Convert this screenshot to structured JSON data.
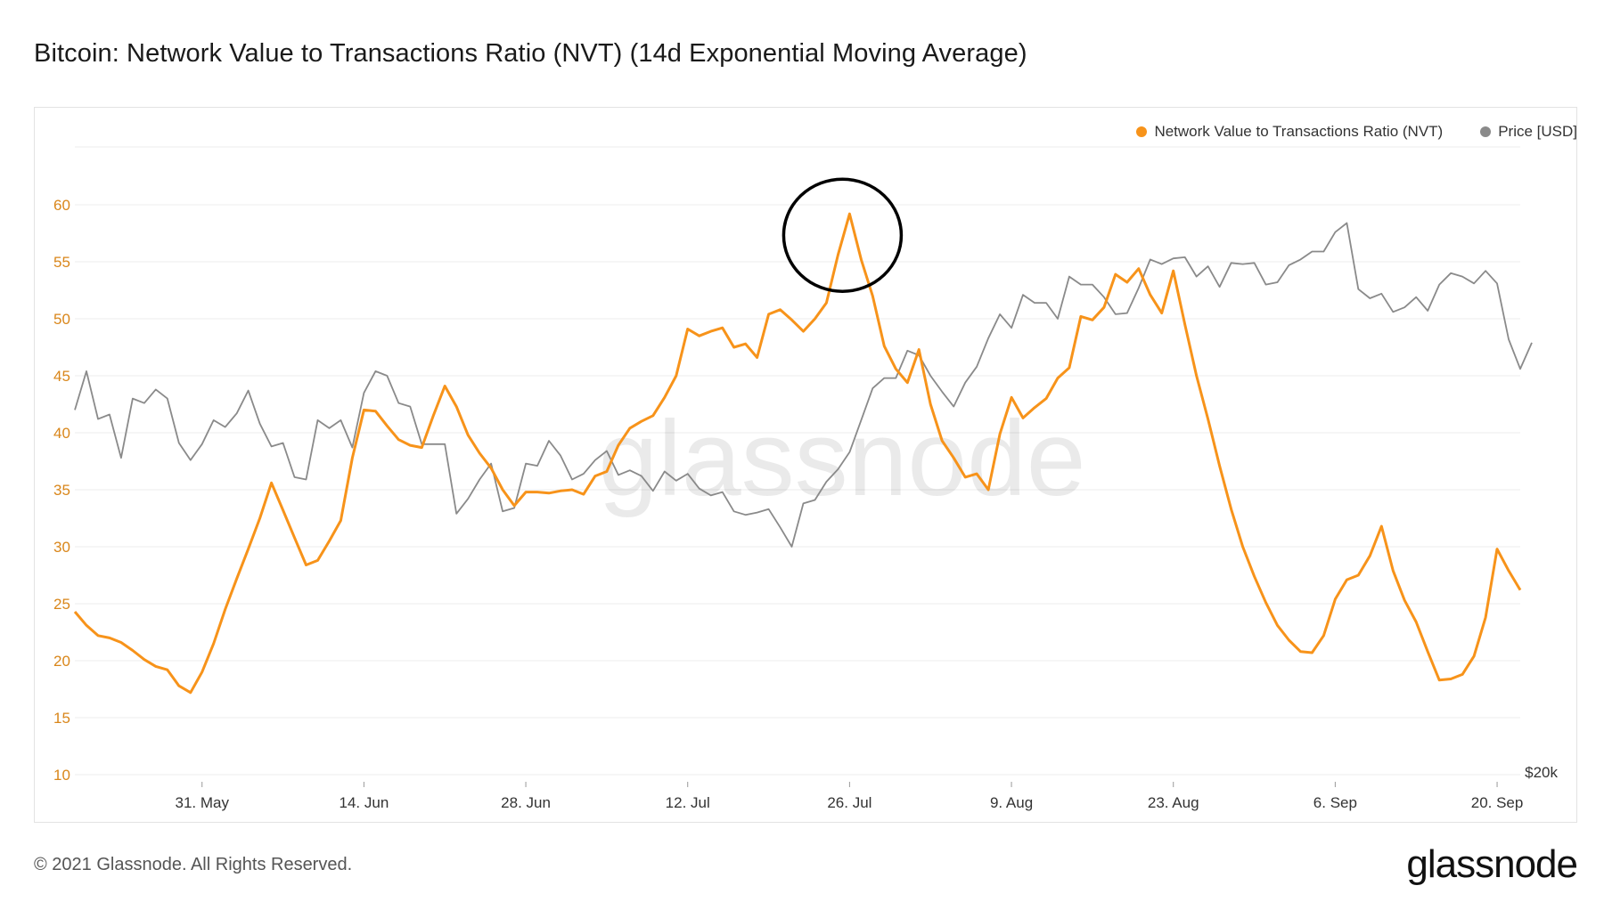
{
  "title": "Bitcoin: Network Value to Transactions Ratio (NVT) (14d Exponential Moving Average)",
  "footer": "© 2021 Glassnode. All Rights Reserved.",
  "brand": "glassnode",
  "watermark": "glassnode",
  "colors": {
    "nvt": "#f7931a",
    "price": "#8a8a8a",
    "grid": "#ececec",
    "left_axis": "#d9861a",
    "circle": "#000000"
  },
  "chart_data": {
    "type": "line",
    "title": "Bitcoin: Network Value to Transactions Ratio (NVT) (14d Exponential Moving Average)",
    "legend_position": "top-right",
    "grid": true,
    "x_range": [
      "2021-05-20",
      "2021-09-22"
    ],
    "x_ticks": [
      {
        "date": "2021-05-31",
        "label": "31. May"
      },
      {
        "date": "2021-06-14",
        "label": "14. Jun"
      },
      {
        "date": "2021-06-28",
        "label": "28. Jun"
      },
      {
        "date": "2021-07-12",
        "label": "12. Jul"
      },
      {
        "date": "2021-07-26",
        "label": "26. Jul"
      },
      {
        "date": "2021-08-09",
        "label": "9. Aug"
      },
      {
        "date": "2021-08-23",
        "label": "23. Aug"
      },
      {
        "date": "2021-09-06",
        "label": "6. Sep"
      },
      {
        "date": "2021-09-20",
        "label": "20. Sep"
      }
    ],
    "y_left": {
      "ylim": [
        10,
        60
      ],
      "ticks": [
        10,
        15,
        20,
        25,
        30,
        35,
        40,
        45,
        50,
        55,
        60
      ]
    },
    "y_right": {
      "tick_label": "$20k"
    },
    "annotation": {
      "shape": "circle",
      "date": "2021-07-25",
      "value": 58.5
    },
    "series": [
      {
        "name": "Network Value to Transactions Ratio (NVT)",
        "axis": "left",
        "points": [
          [
            "2021-05-20",
            24.3
          ],
          [
            "2021-05-21",
            23.1
          ],
          [
            "2021-05-22",
            22.2
          ],
          [
            "2021-05-23",
            22.0
          ],
          [
            "2021-05-24",
            21.6
          ],
          [
            "2021-05-25",
            20.9
          ],
          [
            "2021-05-26",
            20.1
          ],
          [
            "2021-05-27",
            19.5
          ],
          [
            "2021-05-28",
            19.2
          ],
          [
            "2021-05-29",
            17.8
          ],
          [
            "2021-05-30",
            17.2
          ],
          [
            "2021-05-31",
            19.0
          ],
          [
            "2021-06-01",
            21.5
          ],
          [
            "2021-06-02",
            24.5
          ],
          [
            "2021-06-03",
            27.2
          ],
          [
            "2021-06-04",
            29.8
          ],
          [
            "2021-06-05",
            32.5
          ],
          [
            "2021-06-06",
            35.6
          ],
          [
            "2021-06-07",
            33.2
          ],
          [
            "2021-06-08",
            30.8
          ],
          [
            "2021-06-09",
            28.4
          ],
          [
            "2021-06-10",
            28.8
          ],
          [
            "2021-06-11",
            30.5
          ],
          [
            "2021-06-12",
            32.3
          ],
          [
            "2021-06-13",
            37.8
          ],
          [
            "2021-06-14",
            42.0
          ],
          [
            "2021-06-15",
            41.9
          ],
          [
            "2021-06-16",
            40.6
          ],
          [
            "2021-06-17",
            39.4
          ],
          [
            "2021-06-18",
            38.9
          ],
          [
            "2021-06-19",
            38.7
          ],
          [
            "2021-06-20",
            41.5
          ],
          [
            "2021-06-21",
            44.1
          ],
          [
            "2021-06-22",
            42.3
          ],
          [
            "2021-06-23",
            39.8
          ],
          [
            "2021-06-24",
            38.2
          ],
          [
            "2021-06-25",
            36.9
          ],
          [
            "2021-06-26",
            35.0
          ],
          [
            "2021-06-27",
            33.6
          ],
          [
            "2021-06-28",
            34.8
          ],
          [
            "2021-06-29",
            34.8
          ],
          [
            "2021-06-30",
            34.7
          ],
          [
            "2021-07-01",
            34.9
          ],
          [
            "2021-07-02",
            35.0
          ],
          [
            "2021-07-03",
            34.6
          ],
          [
            "2021-07-04",
            36.2
          ],
          [
            "2021-07-05",
            36.6
          ],
          [
            "2021-07-06",
            38.9
          ],
          [
            "2021-07-07",
            40.4
          ],
          [
            "2021-07-08",
            41.0
          ],
          [
            "2021-07-09",
            41.5
          ],
          [
            "2021-07-10",
            43.1
          ],
          [
            "2021-07-11",
            45.0
          ],
          [
            "2021-07-12",
            49.1
          ],
          [
            "2021-07-13",
            48.5
          ],
          [
            "2021-07-14",
            48.9
          ],
          [
            "2021-07-15",
            49.2
          ],
          [
            "2021-07-16",
            47.5
          ],
          [
            "2021-07-17",
            47.8
          ],
          [
            "2021-07-18",
            46.6
          ],
          [
            "2021-07-19",
            50.4
          ],
          [
            "2021-07-20",
            50.8
          ],
          [
            "2021-07-21",
            49.9
          ],
          [
            "2021-07-22",
            48.9
          ],
          [
            "2021-07-23",
            50.0
          ],
          [
            "2021-07-24",
            51.4
          ],
          [
            "2021-07-25",
            55.6
          ],
          [
            "2021-07-26",
            59.2
          ],
          [
            "2021-07-27",
            55.2
          ],
          [
            "2021-07-28",
            52.0
          ],
          [
            "2021-07-29",
            47.6
          ],
          [
            "2021-07-30",
            45.6
          ],
          [
            "2021-07-31",
            44.4
          ],
          [
            "2021-08-01",
            47.3
          ],
          [
            "2021-08-02",
            42.5
          ],
          [
            "2021-08-03",
            39.3
          ],
          [
            "2021-08-04",
            37.8
          ],
          [
            "2021-08-05",
            36.1
          ],
          [
            "2021-08-06",
            36.4
          ],
          [
            "2021-08-07",
            35.0
          ],
          [
            "2021-08-08",
            39.9
          ],
          [
            "2021-08-09",
            43.1
          ],
          [
            "2021-08-10",
            41.3
          ],
          [
            "2021-08-11",
            42.2
          ],
          [
            "2021-08-12",
            43.0
          ],
          [
            "2021-08-13",
            44.8
          ],
          [
            "2021-08-14",
            45.7
          ],
          [
            "2021-08-15",
            50.2
          ],
          [
            "2021-08-16",
            49.9
          ],
          [
            "2021-08-17",
            51.0
          ],
          [
            "2021-08-18",
            53.9
          ],
          [
            "2021-08-19",
            53.2
          ],
          [
            "2021-08-20",
            54.4
          ],
          [
            "2021-08-21",
            52.1
          ],
          [
            "2021-08-22",
            50.5
          ],
          [
            "2021-08-23",
            54.2
          ],
          [
            "2021-08-24",
            49.5
          ],
          [
            "2021-08-25",
            45.0
          ],
          [
            "2021-08-26",
            41.2
          ],
          [
            "2021-08-27",
            37.1
          ],
          [
            "2021-08-28",
            33.3
          ],
          [
            "2021-08-29",
            30.0
          ],
          [
            "2021-08-30",
            27.4
          ],
          [
            "2021-08-31",
            25.1
          ],
          [
            "2021-09-01",
            23.1
          ],
          [
            "2021-09-02",
            21.8
          ],
          [
            "2021-09-03",
            20.8
          ],
          [
            "2021-09-04",
            20.7
          ],
          [
            "2021-09-05",
            22.2
          ],
          [
            "2021-09-06",
            25.4
          ],
          [
            "2021-09-07",
            27.1
          ],
          [
            "2021-09-08",
            27.5
          ],
          [
            "2021-09-09",
            29.2
          ],
          [
            "2021-09-10",
            31.8
          ],
          [
            "2021-09-11",
            27.9
          ],
          [
            "2021-09-12",
            25.3
          ],
          [
            "2021-09-13",
            23.4
          ],
          [
            "2021-09-14",
            20.8
          ],
          [
            "2021-09-15",
            18.3
          ],
          [
            "2021-09-16",
            18.4
          ],
          [
            "2021-09-17",
            18.8
          ],
          [
            "2021-09-18",
            20.4
          ],
          [
            "2021-09-19",
            23.8
          ],
          [
            "2021-09-20",
            29.8
          ],
          [
            "2021-09-21",
            27.9
          ],
          [
            "2021-09-22",
            26.2
          ]
        ]
      },
      {
        "name": "Price [USD]",
        "axis": "right",
        "points": [
          [
            "2021-05-20",
            42.0
          ],
          [
            "2021-05-21",
            45.4
          ],
          [
            "2021-05-22",
            41.2
          ],
          [
            "2021-05-23",
            41.6
          ],
          [
            "2021-05-24",
            37.8
          ],
          [
            "2021-05-25",
            43.0
          ],
          [
            "2021-05-26",
            42.6
          ],
          [
            "2021-05-27",
            43.8
          ],
          [
            "2021-05-28",
            43.0
          ],
          [
            "2021-05-29",
            39.1
          ],
          [
            "2021-05-30",
            37.6
          ],
          [
            "2021-05-31",
            39.0
          ],
          [
            "2021-06-01",
            41.1
          ],
          [
            "2021-06-02",
            40.5
          ],
          [
            "2021-06-03",
            41.7
          ],
          [
            "2021-06-04",
            43.7
          ],
          [
            "2021-06-05",
            40.8
          ],
          [
            "2021-06-06",
            38.8
          ],
          [
            "2021-06-07",
            39.1
          ],
          [
            "2021-06-08",
            36.1
          ],
          [
            "2021-06-09",
            35.9
          ],
          [
            "2021-06-10",
            41.1
          ],
          [
            "2021-06-11",
            40.4
          ],
          [
            "2021-06-12",
            41.1
          ],
          [
            "2021-06-13",
            38.7
          ],
          [
            "2021-06-14",
            43.5
          ],
          [
            "2021-06-15",
            45.4
          ],
          [
            "2021-06-16",
            45.0
          ],
          [
            "2021-06-17",
            42.6
          ],
          [
            "2021-06-18",
            42.3
          ],
          [
            "2021-06-19",
            39.0
          ],
          [
            "2021-06-20",
            39.0
          ],
          [
            "2021-06-21",
            39.0
          ],
          [
            "2021-06-22",
            32.9
          ],
          [
            "2021-06-23",
            34.2
          ],
          [
            "2021-06-24",
            35.9
          ],
          [
            "2021-06-25",
            37.3
          ],
          [
            "2021-06-26",
            33.1
          ],
          [
            "2021-06-27",
            33.4
          ],
          [
            "2021-06-28",
            37.3
          ],
          [
            "2021-06-29",
            37.1
          ],
          [
            "2021-06-30",
            39.3
          ],
          [
            "2021-07-01",
            38.0
          ],
          [
            "2021-07-02",
            35.9
          ],
          [
            "2021-07-03",
            36.4
          ],
          [
            "2021-07-04",
            37.6
          ],
          [
            "2021-07-05",
            38.4
          ],
          [
            "2021-07-06",
            36.3
          ],
          [
            "2021-07-07",
            36.7
          ],
          [
            "2021-07-08",
            36.2
          ],
          [
            "2021-07-09",
            34.9
          ],
          [
            "2021-07-10",
            36.6
          ],
          [
            "2021-07-11",
            35.8
          ],
          [
            "2021-07-12",
            36.4
          ],
          [
            "2021-07-13",
            35.1
          ],
          [
            "2021-07-14",
            34.5
          ],
          [
            "2021-07-15",
            34.8
          ],
          [
            "2021-07-16",
            33.1
          ],
          [
            "2021-07-17",
            32.8
          ],
          [
            "2021-07-18",
            33.0
          ],
          [
            "2021-07-19",
            33.3
          ],
          [
            "2021-07-20",
            31.7
          ],
          [
            "2021-07-21",
            30.0
          ],
          [
            "2021-07-22",
            33.8
          ],
          [
            "2021-07-23",
            34.1
          ],
          [
            "2021-07-24",
            35.7
          ],
          [
            "2021-07-25",
            36.8
          ],
          [
            "2021-07-26",
            38.3
          ],
          [
            "2021-07-27",
            41.1
          ],
          [
            "2021-07-28",
            43.9
          ],
          [
            "2021-07-29",
            44.8
          ],
          [
            "2021-07-30",
            44.8
          ],
          [
            "2021-07-31",
            47.2
          ],
          [
            "2021-08-01",
            46.8
          ],
          [
            "2021-08-02",
            45.0
          ],
          [
            "2021-08-03",
            43.6
          ],
          [
            "2021-08-04",
            42.3
          ],
          [
            "2021-08-05",
            44.4
          ],
          [
            "2021-08-06",
            45.8
          ],
          [
            "2021-08-07",
            48.3
          ],
          [
            "2021-08-08",
            50.4
          ],
          [
            "2021-08-09",
            49.2
          ],
          [
            "2021-08-10",
            52.1
          ],
          [
            "2021-08-11",
            51.4
          ],
          [
            "2021-08-12",
            51.4
          ],
          [
            "2021-08-13",
            50.0
          ],
          [
            "2021-08-14",
            53.7
          ],
          [
            "2021-08-15",
            53.0
          ],
          [
            "2021-08-16",
            53.0
          ],
          [
            "2021-08-17",
            51.9
          ],
          [
            "2021-08-18",
            50.4
          ],
          [
            "2021-08-19",
            50.5
          ],
          [
            "2021-08-20",
            52.7
          ],
          [
            "2021-08-21",
            55.2
          ],
          [
            "2021-08-22",
            54.8
          ],
          [
            "2021-08-23",
            55.3
          ],
          [
            "2021-08-24",
            55.4
          ],
          [
            "2021-08-25",
            53.7
          ],
          [
            "2021-08-26",
            54.6
          ],
          [
            "2021-08-27",
            52.8
          ],
          [
            "2021-08-28",
            54.9
          ],
          [
            "2021-08-29",
            54.8
          ],
          [
            "2021-08-30",
            54.9
          ],
          [
            "2021-08-31",
            53.0
          ],
          [
            "2021-09-01",
            53.2
          ],
          [
            "2021-09-02",
            54.7
          ],
          [
            "2021-09-03",
            55.2
          ],
          [
            "2021-09-04",
            55.9
          ],
          [
            "2021-09-05",
            55.9
          ],
          [
            "2021-09-06",
            57.6
          ],
          [
            "2021-09-07",
            58.4
          ],
          [
            "2021-09-08",
            52.6
          ],
          [
            "2021-09-09",
            51.8
          ],
          [
            "2021-09-10",
            52.2
          ],
          [
            "2021-09-11",
            50.6
          ],
          [
            "2021-09-12",
            51.0
          ],
          [
            "2021-09-13",
            51.9
          ],
          [
            "2021-09-14",
            50.7
          ],
          [
            "2021-09-15",
            53.0
          ],
          [
            "2021-09-16",
            54.0
          ],
          [
            "2021-09-17",
            53.7
          ],
          [
            "2021-09-18",
            53.1
          ],
          [
            "2021-09-19",
            54.2
          ],
          [
            "2021-09-20",
            53.1
          ],
          [
            "2021-09-21",
            48.2
          ],
          [
            "2021-09-22",
            45.6
          ],
          [
            "2021-09-23",
            47.9
          ]
        ]
      }
    ]
  }
}
